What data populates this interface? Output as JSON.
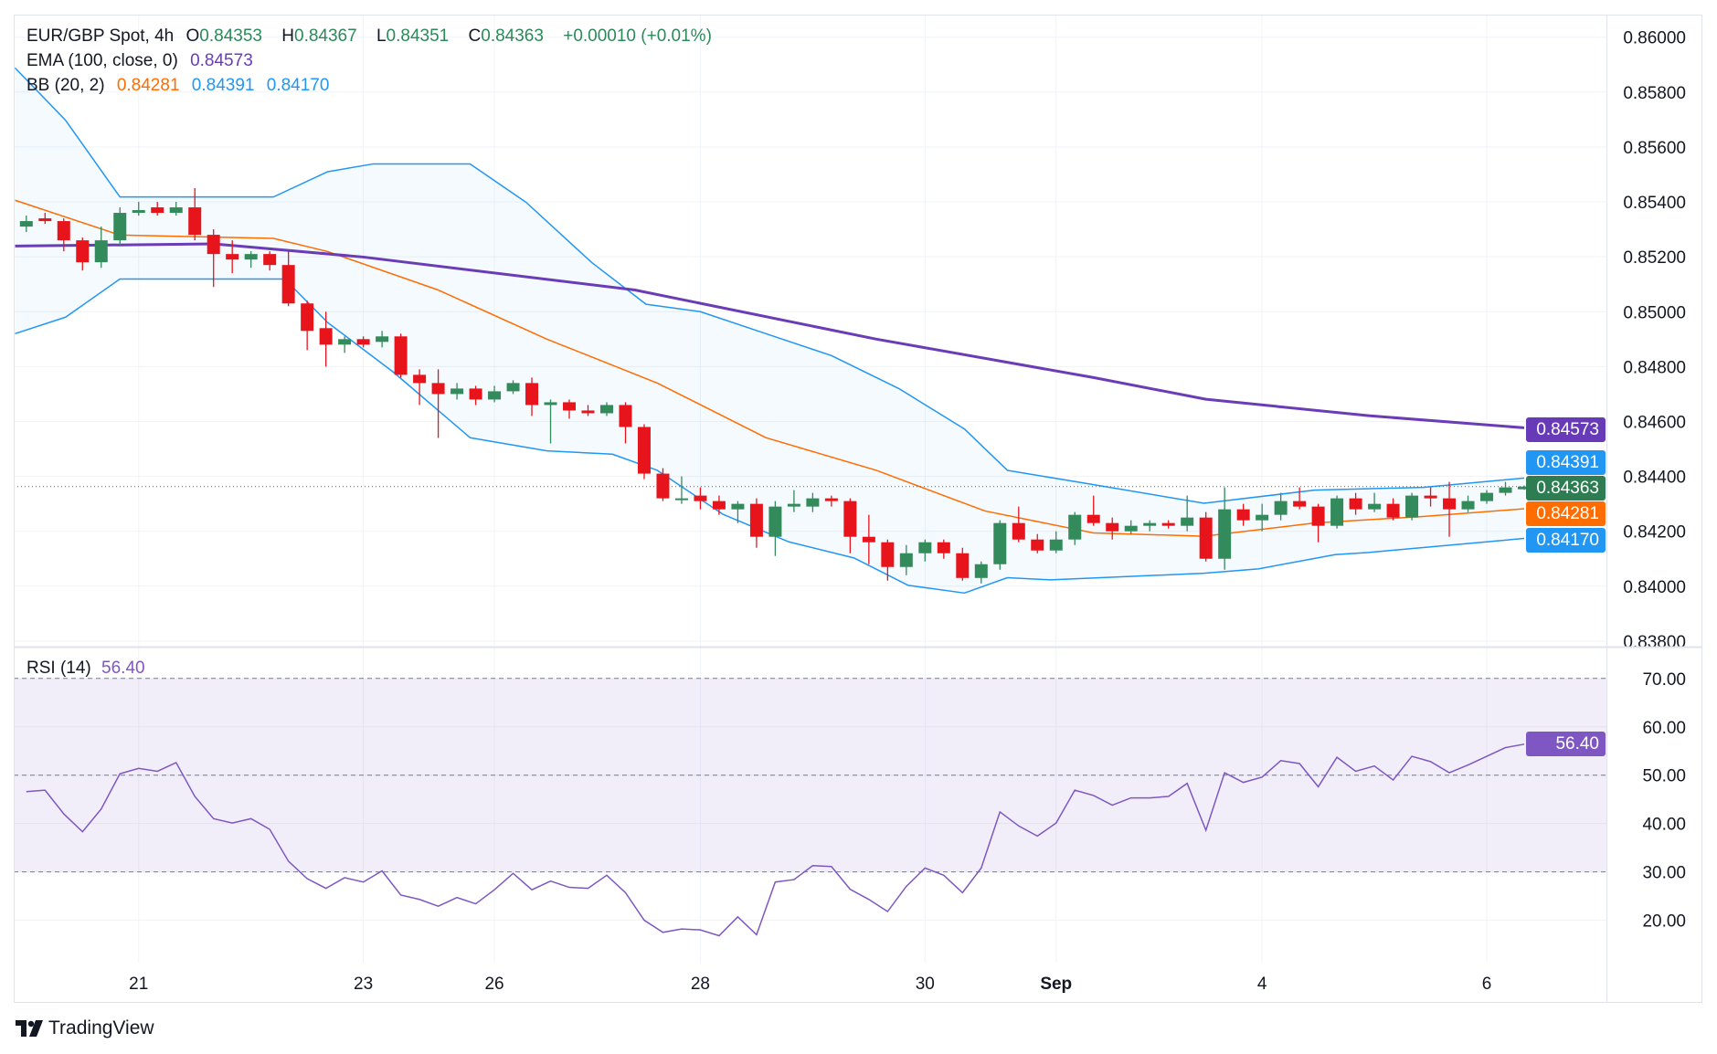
{
  "header": {
    "symbol": "EUR/GBP Spot, 4h",
    "o_label": "O",
    "open": "0.84353",
    "h_label": "H",
    "high": "0.84367",
    "l_label": "L",
    "low": "0.84351",
    "c_label": "C",
    "close": "0.84363",
    "change": "+0.00010 (+0.01%)",
    "ema_label": "EMA (100, close, 0)",
    "ema_value": "0.84573",
    "bb_label": "BB (20, 2)",
    "bb_mid": "0.84281",
    "bb_upper": "0.84391",
    "bb_lower": "0.84170"
  },
  "rsi_legend": {
    "label": "RSI (14)",
    "value": "56.40"
  },
  "badges": {
    "ema": "0.84573",
    "bb_upper": "0.84391",
    "price": "0.84363",
    "bb_mid": "0.84281",
    "bb_lower": "0.84170",
    "rsi": "56.40"
  },
  "brand": "TradingView",
  "colors": {
    "up": "#338a5a",
    "down": "#e8141c",
    "ema": "#6a3cb6",
    "bb_mid": "#ff6d00",
    "bb_band": "#2196f3",
    "rsi": "#7e57c2"
  },
  "chart_data": [
    {
      "type": "candlestick",
      "title": "EUR/GBP Spot, 4h",
      "ylim": [
        0.838,
        0.86
      ],
      "yticks": [
        "0.86000",
        "0.85800",
        "0.85600",
        "0.85400",
        "0.85200",
        "0.85000",
        "0.84800",
        "0.84600",
        "0.84400",
        "0.84200",
        "0.84000",
        "0.83800"
      ],
      "xticks": [
        {
          "bar": 6,
          "label": "21"
        },
        {
          "bar": 18,
          "label": "23"
        },
        {
          "bar": 25,
          "label": "26"
        },
        {
          "bar": 36,
          "label": "28"
        },
        {
          "bar": 48,
          "label": "30"
        },
        {
          "bar": 55,
          "label": "Sep",
          "bold": true
        },
        {
          "bar": 66,
          "label": "4"
        },
        {
          "bar": 78,
          "label": "6"
        }
      ],
      "current_price": 0.84363,
      "ohlc": [
        [
          0.8531,
          0.8535,
          0.8529,
          0.8533
        ],
        [
          0.8534,
          0.8536,
          0.8532,
          0.8533
        ],
        [
          0.8533,
          0.8534,
          0.8522,
          0.8526
        ],
        [
          0.8526,
          0.8527,
          0.8515,
          0.8518
        ],
        [
          0.8518,
          0.8531,
          0.8516,
          0.8526
        ],
        [
          0.8526,
          0.8538,
          0.8524,
          0.8536
        ],
        [
          0.8536,
          0.854,
          0.8535,
          0.8537
        ],
        [
          0.8538,
          0.854,
          0.8535,
          0.8536
        ],
        [
          0.8536,
          0.854,
          0.8535,
          0.8538
        ],
        [
          0.8538,
          0.8545,
          0.8526,
          0.8528
        ],
        [
          0.8528,
          0.853,
          0.8509,
          0.8521
        ],
        [
          0.8521,
          0.8526,
          0.8514,
          0.8519
        ],
        [
          0.8519,
          0.8522,
          0.8516,
          0.8521
        ],
        [
          0.8521,
          0.8522,
          0.8515,
          0.8517
        ],
        [
          0.8517,
          0.8522,
          0.8502,
          0.8503
        ],
        [
          0.8503,
          0.8504,
          0.8486,
          0.8493
        ],
        [
          0.8494,
          0.85,
          0.848,
          0.8488
        ],
        [
          0.8488,
          0.8491,
          0.8485,
          0.849
        ],
        [
          0.849,
          0.8491,
          0.8487,
          0.8488
        ],
        [
          0.8489,
          0.8493,
          0.8487,
          0.8491
        ],
        [
          0.8491,
          0.8492,
          0.8476,
          0.8477
        ],
        [
          0.8477,
          0.8479,
          0.8466,
          0.8474
        ],
        [
          0.8474,
          0.8479,
          0.8454,
          0.847
        ],
        [
          0.847,
          0.8474,
          0.8468,
          0.8472
        ],
        [
          0.8472,
          0.8473,
          0.8466,
          0.8468
        ],
        [
          0.8468,
          0.8473,
          0.8467,
          0.8471
        ],
        [
          0.8471,
          0.8475,
          0.847,
          0.8474
        ],
        [
          0.8474,
          0.8476,
          0.8462,
          0.8466
        ],
        [
          0.8466,
          0.8468,
          0.8452,
          0.8467
        ],
        [
          0.8467,
          0.8468,
          0.8461,
          0.8464
        ],
        [
          0.8464,
          0.8466,
          0.8462,
          0.8463
        ],
        [
          0.8463,
          0.8467,
          0.8462,
          0.8466
        ],
        [
          0.8466,
          0.8467,
          0.8452,
          0.8458
        ],
        [
          0.8458,
          0.8459,
          0.8439,
          0.8441
        ],
        [
          0.8441,
          0.8443,
          0.8431,
          0.8432
        ],
        [
          0.8432,
          0.844,
          0.843,
          0.8432
        ],
        [
          0.8433,
          0.8436,
          0.8428,
          0.8431
        ],
        [
          0.8431,
          0.8433,
          0.8426,
          0.8428
        ],
        [
          0.8428,
          0.8431,
          0.8423,
          0.843
        ],
        [
          0.843,
          0.8432,
          0.8414,
          0.8418
        ],
        [
          0.8418,
          0.8431,
          0.8411,
          0.8429
        ],
        [
          0.8429,
          0.8435,
          0.8427,
          0.843
        ],
        [
          0.8429,
          0.8434,
          0.8427,
          0.8432
        ],
        [
          0.8432,
          0.8433,
          0.8429,
          0.8431
        ],
        [
          0.8431,
          0.8432,
          0.8412,
          0.8418
        ],
        [
          0.8418,
          0.8426,
          0.8408,
          0.8416
        ],
        [
          0.8416,
          0.8417,
          0.8402,
          0.8407
        ],
        [
          0.8407,
          0.8415,
          0.8404,
          0.8412
        ],
        [
          0.8412,
          0.8417,
          0.8409,
          0.8416
        ],
        [
          0.8416,
          0.8417,
          0.841,
          0.8412
        ],
        [
          0.8412,
          0.8414,
          0.8402,
          0.8403
        ],
        [
          0.8403,
          0.8409,
          0.8401,
          0.8408
        ],
        [
          0.8408,
          0.8424,
          0.8406,
          0.8423
        ],
        [
          0.8423,
          0.8429,
          0.8416,
          0.8417
        ],
        [
          0.8417,
          0.8419,
          0.8412,
          0.8413
        ],
        [
          0.8413,
          0.842,
          0.8412,
          0.8417
        ],
        [
          0.8417,
          0.8427,
          0.8415,
          0.8426
        ],
        [
          0.8426,
          0.8433,
          0.8422,
          0.8423
        ],
        [
          0.8423,
          0.8425,
          0.8417,
          0.842
        ],
        [
          0.842,
          0.8424,
          0.8419,
          0.8422
        ],
        [
          0.8422,
          0.8424,
          0.842,
          0.8423
        ],
        [
          0.8423,
          0.8424,
          0.8421,
          0.8422
        ],
        [
          0.8422,
          0.8433,
          0.842,
          0.8425
        ],
        [
          0.8425,
          0.8427,
          0.8409,
          0.841
        ],
        [
          0.841,
          0.8436,
          0.8406,
          0.8428
        ],
        [
          0.8428,
          0.843,
          0.8422,
          0.8424
        ],
        [
          0.8424,
          0.843,
          0.842,
          0.8426
        ],
        [
          0.8426,
          0.8434,
          0.8424,
          0.8431
        ],
        [
          0.8431,
          0.8436,
          0.8428,
          0.8429
        ],
        [
          0.8429,
          0.843,
          0.8416,
          0.8422
        ],
        [
          0.8422,
          0.8433,
          0.8421,
          0.8432
        ],
        [
          0.8432,
          0.8434,
          0.8426,
          0.8428
        ],
        [
          0.8428,
          0.8434,
          0.8427,
          0.843
        ],
        [
          0.843,
          0.8432,
          0.8424,
          0.8425
        ],
        [
          0.8425,
          0.8434,
          0.8424,
          0.8433
        ],
        [
          0.8433,
          0.8436,
          0.8429,
          0.8432
        ],
        [
          0.8432,
          0.8438,
          0.8418,
          0.8428
        ],
        [
          0.8428,
          0.8433,
          0.8427,
          0.8431
        ],
        [
          0.8431,
          0.8435,
          0.843,
          0.8434
        ],
        [
          0.8434,
          0.8438,
          0.8433,
          0.8436
        ],
        [
          0.84353,
          0.84367,
          0.84351,
          0.84363
        ]
      ],
      "ema100": [
        [
          -0.6,
          0.85239
        ],
        [
          10,
          0.85247
        ],
        [
          18,
          0.85199
        ],
        [
          32.5,
          0.85079
        ],
        [
          45.4,
          0.849
        ],
        [
          57,
          0.8476
        ],
        [
          63,
          0.84681
        ],
        [
          71.7,
          0.84621
        ],
        [
          80,
          0.84577
        ]
      ],
      "bb_mid": [
        [
          -0.6,
          0.85406
        ],
        [
          5,
          0.85279
        ],
        [
          13.2,
          0.85267
        ],
        [
          16.1,
          0.85219
        ],
        [
          22,
          0.85079
        ],
        [
          27.8,
          0.849
        ],
        [
          33.7,
          0.8474
        ],
        [
          39.5,
          0.84541
        ],
        [
          45.4,
          0.84422
        ],
        [
          51.2,
          0.84274
        ],
        [
          57,
          0.84194
        ],
        [
          62.9,
          0.84182
        ],
        [
          68.8,
          0.8423
        ],
        [
          74.6,
          0.84254
        ],
        [
          80,
          0.84282
        ]
      ],
      "bb_upper": [
        [
          -0.6,
          0.85888
        ],
        [
          2.1,
          0.85697
        ],
        [
          5,
          0.85418
        ],
        [
          13.2,
          0.85418
        ],
        [
          16.1,
          0.8551
        ],
        [
          18.5,
          0.85538
        ],
        [
          23.7,
          0.85538
        ],
        [
          26.7,
          0.85398
        ],
        [
          30.2,
          0.85179
        ],
        [
          33.1,
          0.85027
        ],
        [
          36,
          0.85
        ],
        [
          39.5,
          0.8492
        ],
        [
          43,
          0.8484
        ],
        [
          46.6,
          0.8472
        ],
        [
          50.1,
          0.84573
        ],
        [
          52.4,
          0.84422
        ],
        [
          57,
          0.8437
        ],
        [
          62.9,
          0.84302
        ],
        [
          68.8,
          0.8435
        ],
        [
          74.6,
          0.8436
        ],
        [
          80,
          0.84394
        ]
      ],
      "bb_lower": [
        [
          -0.6,
          0.8492
        ],
        [
          2.1,
          0.8498
        ],
        [
          5,
          0.85119
        ],
        [
          13.8,
          0.85119
        ],
        [
          16.1,
          0.8496
        ],
        [
          19.6,
          0.8478
        ],
        [
          23.7,
          0.84541
        ],
        [
          27.8,
          0.84493
        ],
        [
          31.3,
          0.84481
        ],
        [
          33.7,
          0.84422
        ],
        [
          37.2,
          0.84262
        ],
        [
          40.7,
          0.84162
        ],
        [
          44.2,
          0.84103
        ],
        [
          47.1,
          0.84003
        ],
        [
          50.1,
          0.83975
        ],
        [
          52.4,
          0.84031
        ],
        [
          54.7,
          0.84023
        ],
        [
          62.9,
          0.84047
        ],
        [
          65.8,
          0.84063
        ],
        [
          69.9,
          0.84115
        ],
        [
          71.7,
          0.84123
        ],
        [
          80,
          0.84174
        ]
      ]
    },
    {
      "type": "line",
      "title": "RSI (14)",
      "ylim": [
        13,
        77
      ],
      "yticks": [
        "70.00",
        "60.00",
        "50.00",
        "40.00",
        "30.00",
        "20.00"
      ],
      "band": [
        30,
        70
      ],
      "dashed_levels": [
        70,
        50,
        30
      ],
      "values": [
        46.6,
        46.9,
        42,
        38.3,
        43,
        50.3,
        51.4,
        50.8,
        52.6,
        45.6,
        41,
        40.1,
        41,
        38.8,
        32.2,
        28.6,
        26.6,
        28.8,
        27.9,
        30.2,
        25.2,
        24.3,
        22.9,
        24.7,
        23.4,
        26.3,
        29.7,
        26.3,
        28.1,
        26.8,
        26.6,
        29.3,
        25.7,
        20,
        17.5,
        18.2,
        18,
        16.8,
        20.7,
        17,
        27.9,
        28.4,
        31.3,
        31.1,
        26.4,
        24.3,
        21.8,
        27,
        30.8,
        29.3,
        25.7,
        30.8,
        42.4,
        39.5,
        37.4,
        40.1,
        46.9,
        45.8,
        43.8,
        45.3,
        45.3,
        45.6,
        48.3,
        38.6,
        50.5,
        48.5,
        49.6,
        53,
        52.4,
        47.6,
        53.7,
        50.8,
        51.9,
        49,
        53.9,
        52.8,
        50.5,
        52.1,
        53.9,
        55.7,
        56.4
      ]
    }
  ]
}
